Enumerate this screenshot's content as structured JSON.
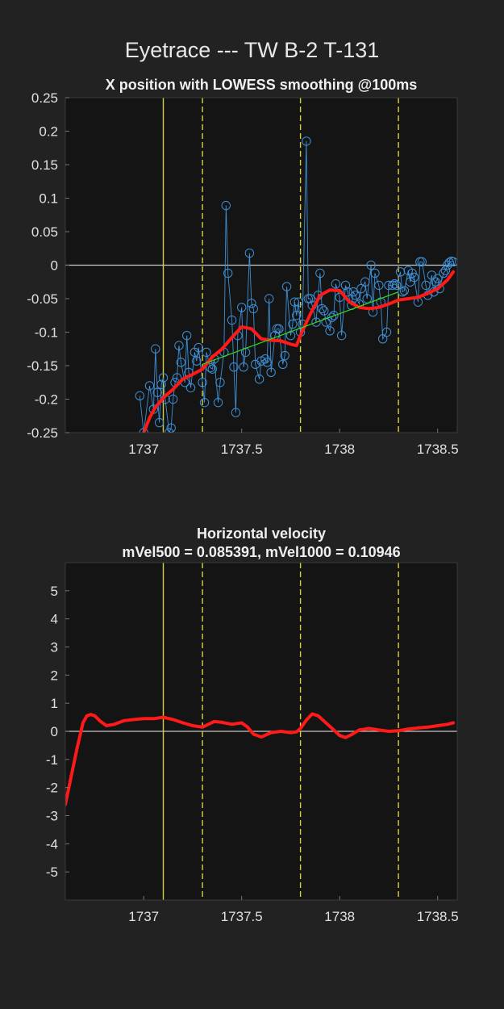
{
  "figure": {
    "suptitle": "Eyetrace --- TW B-2 T-131"
  },
  "colors": {
    "figure_bg": "#222222",
    "axes_bg": "#141414",
    "raw_series": "#3d8fd6",
    "smooth_series": "#ff1a1a",
    "fit_line": "#33e01a",
    "event_lines": "#d8cf3a",
    "zero_line": "#c8c8c8"
  },
  "chart_data": [
    {
      "type": "line",
      "title": "X position with LOWESS smoothing @100ms",
      "xlabel": "",
      "ylabel": "",
      "xlim": [
        1736.6,
        1738.6
      ],
      "ylim": [
        -0.25,
        0.25
      ],
      "xticks": [
        1737,
        1737.5,
        1738,
        1738.5
      ],
      "xtick_labels": [
        "1737",
        "1737.5",
        "1738",
        "1738.5"
      ],
      "yticks": [
        -0.25,
        -0.2,
        -0.15,
        -0.1,
        -0.05,
        0,
        0.05,
        0.1,
        0.15,
        0.2,
        0.25
      ],
      "ytick_labels": [
        "-0.25",
        "-0.2",
        "-0.15",
        "-0.1",
        "-0.05",
        "0",
        "0.05",
        "0.1",
        "0.15",
        "0.2",
        "0.25"
      ],
      "grid": false,
      "event_lines": [
        {
          "x": 1737.1,
          "style": "solid"
        },
        {
          "x": 1737.3,
          "style": "dashed"
        },
        {
          "x": 1737.8,
          "style": "dashed"
        },
        {
          "x": 1738.3,
          "style": "dashed"
        }
      ],
      "hline": 0,
      "series": [
        {
          "kind": "raw_markers",
          "x": [
            1736.98,
            1737.0,
            1737.03,
            1737.05,
            1737.06,
            1737.07,
            1737.08,
            1737.09,
            1737.1,
            1737.11,
            1737.13,
            1737.14,
            1737.15,
            1737.16,
            1737.17,
            1737.18,
            1737.19,
            1737.21,
            1737.22,
            1737.23,
            1737.24,
            1737.26,
            1737.27,
            1737.28,
            1737.3,
            1737.31,
            1737.32,
            1737.34,
            1737.35,
            1737.36,
            1737.38,
            1737.39,
            1737.41,
            1737.42,
            1737.43,
            1737.45,
            1737.46,
            1737.47,
            1737.48,
            1737.5,
            1737.51,
            1737.52,
            1737.54,
            1737.55,
            1737.56,
            1737.57,
            1737.59,
            1737.6,
            1737.62,
            1737.63,
            1737.64,
            1737.65,
            1737.67,
            1737.68,
            1737.69,
            1737.71,
            1737.72,
            1737.73,
            1737.75,
            1737.76,
            1737.77,
            1737.78,
            1737.79,
            1737.8,
            1737.81,
            1737.83,
            1737.84,
            1737.85,
            1737.86,
            1737.88,
            1737.89,
            1737.9,
            1737.91,
            1737.92,
            1737.93,
            1737.95,
            1737.96,
            1737.97,
            1737.98,
            1738.0,
            1738.01,
            1738.03,
            1738.04,
            1738.06,
            1738.07,
            1738.08,
            1738.1,
            1738.11,
            1738.13,
            1738.14,
            1738.16,
            1738.17,
            1738.18,
            1738.2,
            1738.21,
            1738.22,
            1738.24,
            1738.25,
            1738.27,
            1738.28,
            1738.29,
            1738.31,
            1738.32,
            1738.33,
            1738.35,
            1738.36,
            1738.37,
            1738.38,
            1738.4,
            1738.41,
            1738.42,
            1738.44,
            1738.45,
            1738.47,
            1738.48,
            1738.49,
            1738.5,
            1738.51,
            1738.53,
            1738.54,
            1738.55,
            1738.56,
            1738.57,
            1738.58
          ],
          "y": [
            -0.195,
            -0.25,
            -0.18,
            -0.215,
            -0.125,
            -0.19,
            -0.235,
            -0.178,
            -0.168,
            -0.2,
            -0.25,
            -0.243,
            -0.2,
            -0.175,
            -0.168,
            -0.12,
            -0.145,
            -0.175,
            -0.105,
            -0.16,
            -0.183,
            -0.13,
            -0.143,
            -0.123,
            -0.175,
            -0.205,
            -0.13,
            -0.153,
            -0.155,
            -0.14,
            -0.205,
            -0.175,
            -0.13,
            0.089,
            -0.012,
            -0.082,
            -0.152,
            -0.22,
            -0.105,
            -0.063,
            -0.152,
            -0.13,
            0.018,
            -0.057,
            -0.065,
            -0.148,
            -0.17,
            -0.143,
            -0.14,
            -0.145,
            -0.05,
            -0.16,
            -0.105,
            -0.095,
            -0.095,
            -0.148,
            -0.135,
            -0.032,
            -0.105,
            -0.088,
            -0.055,
            -0.075,
            -0.055,
            -0.1,
            -0.088,
            0.185,
            -0.05,
            -0.05,
            -0.06,
            -0.085,
            -0.045,
            -0.012,
            -0.065,
            -0.068,
            -0.085,
            -0.098,
            -0.078,
            -0.075,
            -0.028,
            -0.048,
            -0.105,
            -0.03,
            -0.04,
            -0.06,
            -0.04,
            -0.045,
            -0.058,
            -0.035,
            -0.025,
            -0.05,
            0.0,
            -0.07,
            -0.012,
            -0.03,
            -0.055,
            -0.11,
            -0.1,
            -0.03,
            -0.03,
            -0.028,
            -0.03,
            -0.01,
            -0.04,
            -0.038,
            -0.008,
            -0.025,
            -0.012,
            -0.018,
            -0.055,
            0.005,
            0.005,
            -0.03,
            -0.045,
            -0.015,
            -0.04,
            -0.025,
            -0.02,
            -0.035,
            -0.012,
            -0.008,
            0.0,
            0.004,
            0.006,
            0.005
          ]
        },
        {
          "kind": "lowess",
          "x": [
            1737.0,
            1737.03,
            1737.06,
            1737.1,
            1737.15,
            1737.2,
            1737.25,
            1737.3,
            1737.35,
            1737.4,
            1737.45,
            1737.5,
            1737.55,
            1737.6,
            1737.65,
            1737.7,
            1737.75,
            1737.78,
            1737.8,
            1737.85,
            1737.9,
            1737.95,
            1738.0,
            1738.05,
            1738.1,
            1738.15,
            1738.2,
            1738.25,
            1738.3,
            1738.35,
            1738.4,
            1738.45,
            1738.5,
            1738.55,
            1738.58
          ],
          "y": [
            -0.25,
            -0.228,
            -0.212,
            -0.198,
            -0.185,
            -0.17,
            -0.163,
            -0.155,
            -0.137,
            -0.125,
            -0.108,
            -0.092,
            -0.095,
            -0.11,
            -0.112,
            -0.113,
            -0.118,
            -0.12,
            -0.105,
            -0.073,
            -0.045,
            -0.037,
            -0.038,
            -0.055,
            -0.063,
            -0.065,
            -0.063,
            -0.058,
            -0.052,
            -0.05,
            -0.048,
            -0.042,
            -0.035,
            -0.022,
            -0.01
          ]
        },
        {
          "kind": "linear_fit",
          "x": [
            1737.3,
            1738.3
          ],
          "y": [
            -0.148,
            -0.04
          ]
        }
      ]
    },
    {
      "type": "line",
      "title": "Horizontal velocity",
      "subtitle": "mVel500 = 0.085391, mVel1000 = 0.10946",
      "xlabel": "",
      "ylabel": "",
      "xlim": [
        1736.6,
        1738.6
      ],
      "ylim": [
        -6,
        6
      ],
      "xticks": [
        1737,
        1737.5,
        1738,
        1738.5
      ],
      "xtick_labels": [
        "1737",
        "1737.5",
        "1738",
        "1738.5"
      ],
      "yticks": [
        -5,
        -4,
        -3,
        -2,
        -1,
        0,
        1,
        2,
        3,
        4,
        5
      ],
      "ytick_labels": [
        "-5",
        "-4",
        "-3",
        "-2",
        "-1",
        "0",
        "1",
        "2",
        "3",
        "4",
        "5"
      ],
      "grid": false,
      "event_lines": [
        {
          "x": 1737.1,
          "style": "solid"
        },
        {
          "x": 1737.3,
          "style": "dashed"
        },
        {
          "x": 1737.8,
          "style": "dashed"
        },
        {
          "x": 1738.3,
          "style": "dashed"
        }
      ],
      "hline": 0,
      "series": [
        {
          "kind": "velocity",
          "x": [
            1736.6,
            1736.63,
            1736.66,
            1736.69,
            1736.71,
            1736.73,
            1736.75,
            1736.78,
            1736.81,
            1736.85,
            1736.9,
            1736.95,
            1737.0,
            1737.05,
            1737.1,
            1737.15,
            1737.2,
            1737.25,
            1737.3,
            1737.33,
            1737.36,
            1737.4,
            1737.45,
            1737.5,
            1737.53,
            1737.56,
            1737.6,
            1737.65,
            1737.7,
            1737.75,
            1737.78,
            1737.8,
            1737.83,
            1737.86,
            1737.89,
            1737.93,
            1737.97,
            1738.0,
            1738.03,
            1738.06,
            1738.1,
            1738.15,
            1738.2,
            1738.25,
            1738.3,
            1738.35,
            1738.4,
            1738.45,
            1738.5,
            1738.55,
            1738.58
          ],
          "y": [
            -2.6,
            -1.6,
            -0.6,
            0.3,
            0.55,
            0.6,
            0.55,
            0.35,
            0.2,
            0.25,
            0.38,
            0.42,
            0.45,
            0.45,
            0.5,
            0.42,
            0.3,
            0.2,
            0.15,
            0.25,
            0.35,
            0.32,
            0.25,
            0.3,
            0.15,
            -0.1,
            -0.2,
            -0.05,
            0.0,
            -0.05,
            -0.02,
            0.1,
            0.4,
            0.62,
            0.55,
            0.3,
            0.05,
            -0.15,
            -0.22,
            -0.12,
            0.05,
            0.1,
            0.05,
            0.0,
            0.02,
            0.08,
            0.12,
            0.15,
            0.2,
            0.25,
            0.3
          ]
        }
      ]
    }
  ]
}
